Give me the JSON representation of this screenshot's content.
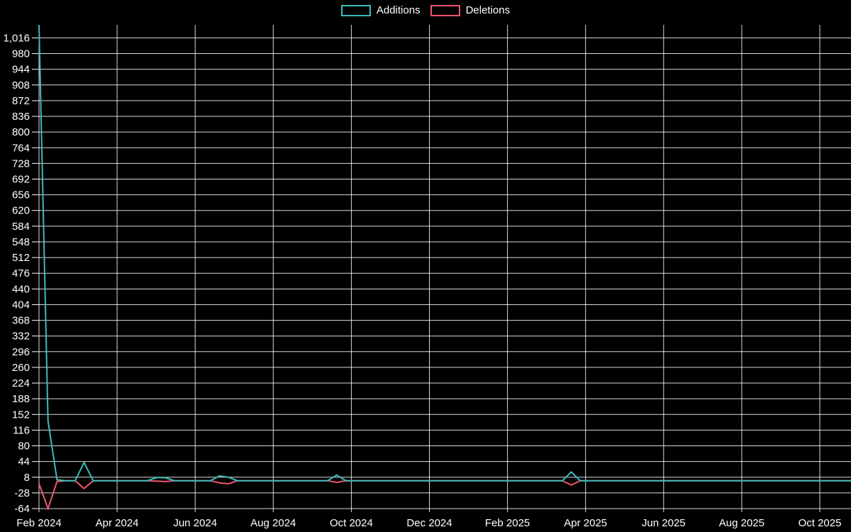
{
  "page": {
    "background": "#000000",
    "grid_color": "#ffffff",
    "text_color": "#ffffff"
  },
  "legend": {
    "items": [
      {
        "label": "Additions",
        "color": "#3cbcbd"
      },
      {
        "label": "Deletions",
        "color": "#f0566e"
      }
    ]
  },
  "chart_data": {
    "type": "line",
    "title": "",
    "xlabel": "",
    "ylabel": "",
    "legend_position": "top-center",
    "grid": true,
    "x_tick_labels": [
      "Feb 2024",
      "Apr 2024",
      "Jun 2024",
      "Aug 2024",
      "Oct 2024",
      "Dec 2024",
      "Feb 2025",
      "Apr 2025",
      "Jun 2025",
      "Aug 2025",
      "Oct 2025"
    ],
    "y_ticks": [
      1016,
      980,
      944,
      908,
      872,
      836,
      800,
      764,
      728,
      692,
      656,
      620,
      584,
      548,
      512,
      476,
      440,
      404,
      368,
      332,
      296,
      260,
      224,
      188,
      152,
      116,
      80,
      44,
      8,
      -28,
      -64
    ],
    "y_tick_labels": [
      "1,016",
      "980",
      "944",
      "908",
      "872",
      "836",
      "800",
      "764",
      "728",
      "692",
      "656",
      "620",
      "584",
      "548",
      "512",
      "476",
      "440",
      "404",
      "368",
      "332",
      "296",
      "260",
      "224",
      "188",
      "152",
      "116",
      "80",
      "44",
      "8",
      "-28",
      "-64"
    ],
    "ylim": [
      -64,
      1046
    ],
    "x_axis": {
      "start_week": "2024-02-04",
      "weeks": 91,
      "unit": "week"
    },
    "series": [
      {
        "name": "Additions",
        "color": "#3cbcbd",
        "values": [
          1045,
          137,
          2,
          0,
          0,
          42,
          0,
          0,
          0,
          0,
          0,
          0,
          0,
          7,
          7,
          0,
          0,
          0,
          0,
          0,
          11,
          8,
          0,
          0,
          0,
          0,
          0,
          0,
          0,
          0,
          0,
          0,
          0,
          13,
          0,
          0,
          0,
          0,
          0,
          0,
          0,
          0,
          0,
          0,
          0,
          0,
          0,
          0,
          0,
          0,
          0,
          0,
          0,
          0,
          0,
          0,
          0,
          0,
          0,
          20,
          0,
          0,
          0,
          0,
          0,
          0,
          0,
          0,
          0,
          0,
          0,
          0,
          0,
          0,
          0,
          0,
          0,
          0,
          0,
          0,
          0,
          0,
          0,
          0,
          0,
          0,
          0,
          0,
          0,
          0,
          0
        ]
      },
      {
        "name": "Deletions",
        "color": "#f0566e",
        "values": [
          -7,
          -64,
          -2,
          0,
          0,
          -18,
          0,
          0,
          0,
          0,
          0,
          0,
          0,
          -1,
          -2,
          0,
          0,
          0,
          0,
          0,
          -5,
          -7,
          0,
          0,
          0,
          0,
          0,
          0,
          0,
          0,
          0,
          0,
          0,
          -4,
          0,
          0,
          0,
          0,
          0,
          0,
          0,
          0,
          0,
          0,
          0,
          0,
          0,
          0,
          0,
          0,
          0,
          0,
          0,
          0,
          0,
          0,
          0,
          0,
          0,
          -10,
          0,
          0,
          0,
          0,
          0,
          0,
          0,
          0,
          0,
          0,
          0,
          0,
          0,
          0,
          0,
          0,
          0,
          0,
          0,
          0,
          0,
          0,
          0,
          0,
          0,
          0,
          0,
          0,
          0,
          0,
          0
        ]
      }
    ]
  }
}
